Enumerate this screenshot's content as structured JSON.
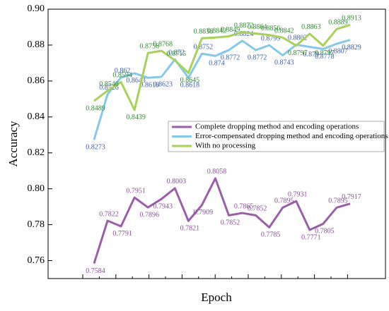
{
  "chart_data": {
    "type": "line",
    "xlabel": "Epoch",
    "ylabel": "Accuracy",
    "categories": [
      null,
      null,
      null,
      null,
      null,
      null,
      null,
      null,
      null,
      null,
      null,
      null,
      null,
      null,
      null,
      null,
      null,
      null,
      null,
      null
    ],
    "series": [
      {
        "name": "Complete dropping method and encoding operations",
        "color": "#9b5fa8",
        "label_color": "#8b4d9a",
        "values": [
          0.7584,
          0.7822,
          0.7791,
          0.7951,
          0.7896,
          0.7943,
          0.8003,
          0.7821,
          0.7909,
          0.8058,
          0.7852,
          0.7865,
          0.7852,
          0.7785,
          0.7895,
          0.7931,
          0.7771,
          0.7805,
          0.7895,
          0.7917
        ]
      },
      {
        "name": "Error-compensated dropping method and encoding operations",
        "color": "#86c8ea",
        "label_color": "#3a5fb0",
        "values": [
          0.8273,
          0.8526,
          0.862,
          0.8643,
          0.8618,
          0.8623,
          0.872,
          0.8618,
          0.8752,
          0.874,
          0.8772,
          0.8824,
          0.8772,
          0.8799,
          0.8743,
          0.8802,
          0.879,
          0.8778,
          0.8807,
          0.8829
        ]
      },
      {
        "name": "With no processing",
        "color": "#a8d15a",
        "label_color": "#2e8b2e",
        "values": [
          0.8489,
          0.8546,
          0.8594,
          0.8439,
          0.8756,
          0.8768,
          0.8715,
          0.8645,
          0.8838,
          0.8842,
          0.8849,
          0.8872,
          0.8864,
          0.8856,
          0.8842,
          0.8797,
          0.8863,
          0.8797,
          0.8889,
          0.8913
        ]
      }
    ],
    "ylim": [
      0.75,
      0.9
    ],
    "yticks": [
      0.76,
      0.78,
      {
        "value": 0.8,
        "label": "0.80"
      },
      0.82,
      0.84,
      0.86,
      0.88,
      {
        "value": 0.9,
        "label": "0.90"
      }
    ]
  }
}
